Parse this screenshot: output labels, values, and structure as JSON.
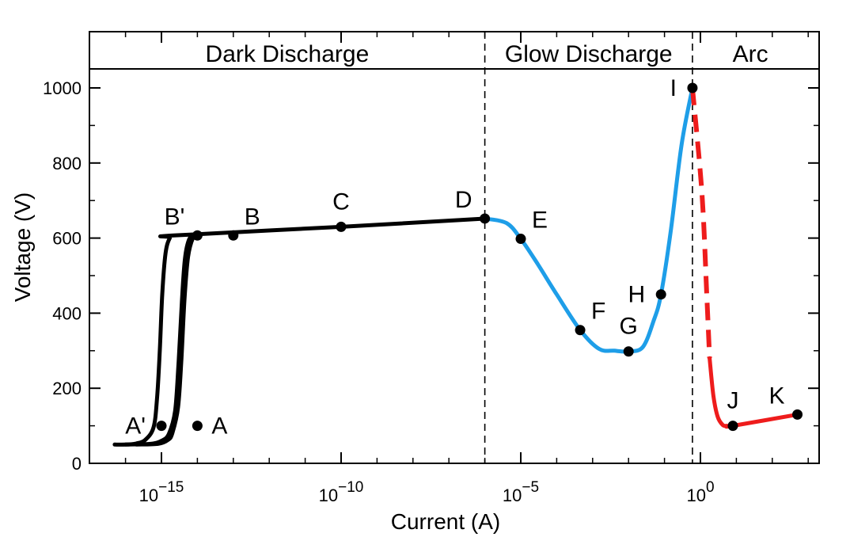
{
  "chart_data": {
    "type": "line",
    "xlabel": "Current  (A)",
    "ylabel": "Voltage  (V)",
    "x_scale": "log",
    "xlim": [
      1e-17,
      1000.0
    ],
    "ylim": [
      0,
      1000
    ],
    "x_ticks": [
      {
        "value": 1e-15,
        "base": "10",
        "exp": "−15"
      },
      {
        "value": 1e-10,
        "base": "10",
        "exp": "−10"
      },
      {
        "value": 1e-05,
        "base": "10",
        "exp": "−5"
      },
      {
        "value": 1,
        "base": "10",
        "exp": "0"
      }
    ],
    "y_ticks": [
      0,
      200,
      400,
      600,
      800,
      1000
    ],
    "regions": [
      {
        "label": "Dark Discharge",
        "x_from": 1e-17,
        "x_to": 1e-06
      },
      {
        "label": "Glow Discharge",
        "x_from": 1e-06,
        "x_to": 0.6
      },
      {
        "label": "Arc",
        "x_from": 0.6,
        "x_to": 1000.0
      }
    ],
    "region_boundaries": [
      1e-06,
      0.6
    ],
    "series": [
      {
        "color": "#000000",
        "dashed": false,
        "points": [
          [
            5e-17,
            50
          ],
          [
            1e-16,
            50
          ],
          [
            2e-16,
            53
          ],
          [
            3.5e-16,
            62
          ],
          [
            6e-16,
            95
          ],
          [
            7.5e-16,
            170
          ],
          [
            9e-16,
            300
          ],
          [
            1.05e-15,
            450
          ],
          [
            1.3e-15,
            560
          ],
          [
            1.7e-15,
            600
          ],
          [
            2.2e-15,
            607
          ],
          [
            1e-10,
            630
          ],
          [
            1e-06,
            652
          ]
        ]
      },
      {
        "color": "#000000",
        "dashed": false,
        "points": [
          [
            1e-16,
            50
          ],
          [
            5e-16,
            52
          ],
          [
            1e-15,
            60
          ],
          [
            1.6e-15,
            78
          ],
          [
            2.4e-15,
            140
          ],
          [
            3e-15,
            270
          ],
          [
            3.7e-15,
            430
          ],
          [
            4.5e-15,
            545
          ],
          [
            6e-15,
            598
          ],
          [
            9e-15,
            606
          ]
        ]
      },
      {
        "color": "#000000",
        "dashed": false,
        "points": [
          [
            2e-16,
            50
          ],
          [
            8e-16,
            52
          ],
          [
            1.5e-15,
            62
          ],
          [
            2e-15,
            80
          ],
          [
            2.9e-15,
            150
          ],
          [
            3.6e-15,
            280
          ],
          [
            4.4e-15,
            440
          ],
          [
            5.5e-15,
            550
          ],
          [
            7.5e-15,
            600
          ],
          [
            1e-14,
            606
          ]
        ]
      },
      {
        "color": "#1e9ee8",
        "dashed": false,
        "points": [
          [
            1e-06,
            652
          ],
          [
            4e-06,
            640
          ],
          [
            1e-05,
            598
          ],
          [
            3e-05,
            530
          ],
          [
            0.0001,
            450
          ],
          [
            0.00045,
            355
          ],
          [
            0.0015,
            305
          ],
          [
            0.004,
            300
          ],
          [
            0.01,
            298
          ],
          [
            0.025,
            310
          ],
          [
            0.05,
            380
          ],
          [
            0.08,
            450
          ],
          [
            0.15,
            620
          ],
          [
            0.3,
            850
          ],
          [
            0.6,
            1000
          ]
        ]
      },
      {
        "color": "#ee1c1c",
        "dashed": true,
        "points": [
          [
            0.6,
            1000
          ],
          [
            1.1,
            720
          ],
          [
            1.5,
            450
          ],
          [
            1.8,
            280
          ]
        ]
      },
      {
        "color": "#ee1c1c",
        "dashed": false,
        "points": [
          [
            1.8,
            280
          ],
          [
            2.3,
            180
          ],
          [
            3,
            125
          ],
          [
            4.2,
            102
          ],
          [
            5.5,
            100
          ],
          [
            8,
            100
          ],
          [
            500,
            130
          ]
        ]
      }
    ],
    "labeled_points": [
      {
        "label": "A'",
        "x": 1e-15,
        "y": 100,
        "anchor": "left"
      },
      {
        "label": "A",
        "x": 1e-14,
        "y": 100,
        "anchor": "right"
      },
      {
        "label": "B'",
        "x": 1e-14,
        "y": 607,
        "anchor": "upleft"
      },
      {
        "label": "B",
        "x": 1e-13,
        "y": 607,
        "anchor": "upright"
      },
      {
        "label": "C",
        "x": 1e-10,
        "y": 630,
        "anchor": "up"
      },
      {
        "label": "D",
        "x": 1e-06,
        "y": 652,
        "anchor": "upleft"
      },
      {
        "label": "E",
        "x": 1e-05,
        "y": 598,
        "anchor": "upright"
      },
      {
        "label": "F",
        "x": 0.00045,
        "y": 355,
        "anchor": "upright"
      },
      {
        "label": "G",
        "x": 0.01,
        "y": 298,
        "anchor": "up"
      },
      {
        "label": "H",
        "x": 0.08,
        "y": 450,
        "anchor": "left"
      },
      {
        "label": "I",
        "x": 0.6,
        "y": 1000,
        "anchor": "left"
      },
      {
        "label": "J",
        "x": 8,
        "y": 100,
        "anchor": "up"
      },
      {
        "label": "K",
        "x": 500,
        "y": 130,
        "anchor": "upleft"
      }
    ]
  }
}
